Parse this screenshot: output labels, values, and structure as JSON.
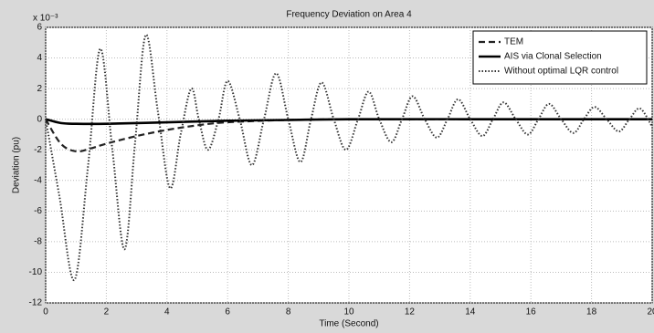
{
  "chart_data": {
    "type": "line",
    "title": "Frequency Deviation on Area 4",
    "xlabel": "Time (Second)",
    "ylabel": "Deviation (pu)",
    "y_exponent": "x 10⁻³",
    "xlim": [
      0,
      20
    ],
    "xticks": [
      0,
      2,
      4,
      6,
      8,
      10,
      12,
      14,
      16,
      18,
      20
    ],
    "ylim": [
      -12,
      6
    ],
    "yticks": [
      -12,
      -10,
      -8,
      -6,
      -4,
      -2,
      0,
      2,
      4,
      6
    ],
    "grid": true,
    "legend": "top-right",
    "series": [
      {
        "name": "TEM",
        "color": "#222222",
        "style": "dashed",
        "x": [
          0,
          0.5,
          1,
          1.5,
          2,
          3,
          4,
          5,
          6,
          8,
          10,
          12,
          14,
          16,
          18,
          20
        ],
        "values": [
          0,
          -1.6,
          -2.1,
          -1.9,
          -1.6,
          -1.1,
          -0.7,
          -0.4,
          -0.2,
          -0.05,
          0,
          0,
          0,
          0,
          0,
          0
        ]
      },
      {
        "name": "AIS via Clonal Selection",
        "color": "#000000",
        "style": "solid",
        "x": [
          0,
          0.5,
          1,
          2,
          4,
          6,
          8,
          10,
          15,
          20
        ],
        "values": [
          0,
          -0.25,
          -0.3,
          -0.3,
          -0.2,
          -0.1,
          -0.05,
          0,
          0,
          0
        ]
      },
      {
        "name": "Without optimal LQR control",
        "color": "#333333",
        "style": "dotted",
        "x": [
          0,
          0.45,
          0.95,
          1.4,
          1.8,
          2.2,
          2.6,
          2.95,
          3.3,
          3.7,
          4.1,
          4.45,
          4.8,
          5.05,
          5.35,
          5.7,
          6.0,
          6.4,
          6.8,
          7.2,
          7.6,
          8.0,
          8.4,
          8.75,
          9.1,
          9.5,
          9.9,
          10.3,
          10.65,
          11.0,
          11.4,
          11.75,
          12.1,
          12.5,
          12.9,
          13.25,
          13.6,
          14.0,
          14.4,
          14.75,
          15.1,
          15.5,
          15.9,
          16.25,
          16.6,
          17.0,
          17.4,
          17.75,
          18.1,
          18.5,
          18.9,
          19.25,
          19.6,
          20
        ],
        "values": [
          0,
          -5,
          -10.5,
          -3,
          4.6,
          -2,
          -8.5,
          -1.5,
          5.5,
          0.5,
          -4.5,
          -1,
          2,
          0,
          -2,
          0,
          2.5,
          0,
          -3,
          0,
          3,
          0,
          -2.8,
          0,
          2.4,
          0,
          -2,
          0,
          1.8,
          0,
          -1.5,
          0,
          1.5,
          0,
          -1.2,
          0,
          1.3,
          0,
          -1.1,
          0,
          1.1,
          0,
          -1,
          0,
          1,
          0,
          -0.9,
          0,
          0.8,
          0,
          -0.8,
          0,
          0.7,
          -0.5
        ]
      }
    ]
  }
}
